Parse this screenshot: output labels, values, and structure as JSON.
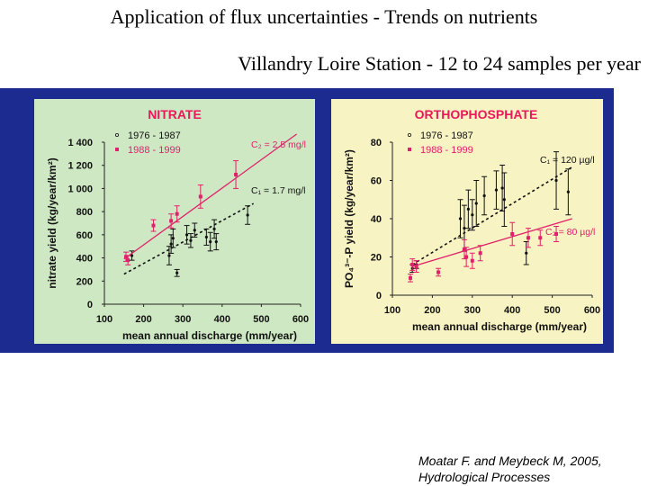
{
  "slide": {
    "title_line1": "Application of flux uncertainties - Trends on nutrients",
    "title_line2": "Villandry Loire Station - 12 to 24 samples per year",
    "citation_line1": "Moatar F. and Meybeck M, 2005,",
    "citation_line2": "Hydrological Processes"
  },
  "colors": {
    "background": "#ffffff",
    "figure_frame": "#1b2b8f",
    "nitrate_panel": "#cfe8c4",
    "phosphate_panel": "#f7f3c2",
    "panel_title": "#e8185a",
    "series_1976_1987": "#111111",
    "series_1988_1999": "#e0206a"
  },
  "chart_data": [
    {
      "type": "scatter",
      "title": "NITRATE",
      "xlabel": "mean annual discharge (mm/year)",
      "ylabel": "nitrate yield (kg/year/km²)",
      "xlim": [
        100,
        600
      ],
      "ylim": [
        0,
        1400
      ],
      "x_ticks": [
        "100",
        "200",
        "300",
        "400",
        "500",
        "600"
      ],
      "y_ticks": [
        "0",
        "200",
        "400",
        "600",
        "800",
        "1 000",
        "1 200",
        "1 400"
      ],
      "legend": [
        "1976 - 1987",
        "1988 - 1999"
      ],
      "legend_position": "top-left",
      "series": [
        {
          "name": "1976 - 1987",
          "points": [
            [
              170,
              420,
              40
            ],
            [
              265,
              420,
              80
            ],
            [
              270,
              520,
              80
            ],
            [
              275,
              570,
              80
            ],
            [
              285,
              270,
              30
            ],
            [
              310,
              600,
              80
            ],
            [
              320,
              550,
              60
            ],
            [
              330,
              640,
              60
            ],
            [
              360,
              580,
              70
            ],
            [
              370,
              540,
              80
            ],
            [
              380,
              650,
              80
            ],
            [
              385,
              540,
              70
            ],
            [
              465,
              770,
              80
            ]
          ],
          "fit": {
            "label": "C₁ = 1.7 mg/l",
            "x": [
              150,
              480
            ],
            "y": [
              260,
              870
            ]
          }
        },
        {
          "name": "1988 - 1999",
          "points": [
            [
              155,
              410,
              40
            ],
            [
              160,
              380,
              40
            ],
            [
              225,
              680,
              50
            ],
            [
              270,
              720,
              60
            ],
            [
              285,
              780,
              70
            ],
            [
              345,
              930,
              100
            ],
            [
              435,
              1120,
              120
            ]
          ],
          "fit": {
            "label": "C₂ = 2.5 mg/l",
            "x": [
              150,
              590
            ],
            "y": [
              390,
              1470
            ]
          }
        }
      ]
    },
    {
      "type": "scatter",
      "title": "ORTHOPHOSPHATE",
      "xlabel": "mean annual discharge (mm/year)",
      "ylabel": "PO₄³⁻-P yield (kg/year/km²)",
      "xlim": [
        100,
        600
      ],
      "ylim": [
        0,
        80
      ],
      "x_ticks": [
        "100",
        "200",
        "300",
        "400",
        "500",
        "600"
      ],
      "y_ticks": [
        "0",
        "20",
        "40",
        "60",
        "80"
      ],
      "legend": [
        "1976 - 1987",
        "1988 - 1999"
      ],
      "legend_position": "top-left",
      "series": [
        {
          "name": "1976 - 1987",
          "points": [
            [
              150,
              14,
              2
            ],
            [
              160,
              16,
              2
            ],
            [
              270,
              40,
              10
            ],
            [
              280,
              35,
              12
            ],
            [
              290,
              45,
              10
            ],
            [
              300,
              42,
              8
            ],
            [
              310,
              48,
              12
            ],
            [
              330,
              52,
              10
            ],
            [
              360,
              55,
              10
            ],
            [
              375,
              56,
              12
            ],
            [
              380,
              50,
              14
            ],
            [
              435,
              22,
              6
            ],
            [
              510,
              60,
              15
            ],
            [
              540,
              54,
              12
            ]
          ],
          "fit": {
            "label": "C₁ = 120 µg/l",
            "x": [
              150,
              550
            ],
            "y": [
              16,
              67
            ]
          }
        },
        {
          "name": "1988 - 1999",
          "points": [
            [
              145,
              9,
              2
            ],
            [
              150,
              16,
              3
            ],
            [
              160,
              15,
              3
            ],
            [
              215,
              12,
              2
            ],
            [
              280,
              24,
              5
            ],
            [
              285,
              20,
              5
            ],
            [
              300,
              18,
              4
            ],
            [
              320,
              22,
              4
            ],
            [
              400,
              32,
              6
            ],
            [
              440,
              30,
              5
            ],
            [
              470,
              30,
              4
            ],
            [
              510,
              32,
              4
            ]
          ],
          "fit": {
            "label": "C₂ = 80 µg/l",
            "x": [
              150,
              550
            ],
            "y": [
              15,
              40
            ]
          }
        }
      ]
    }
  ]
}
